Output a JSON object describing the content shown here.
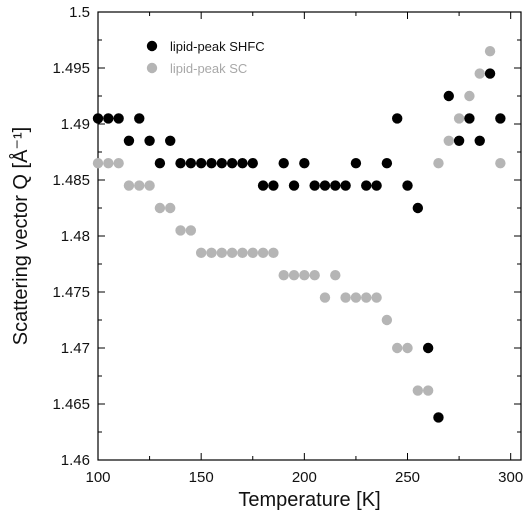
{
  "chart_data": {
    "type": "scatter",
    "title": "",
    "xlabel": "Temperature [K]",
    "ylabel": "Scattering vector Q [Å⁻¹]",
    "xlim": [
      100,
      305
    ],
    "ylim": [
      1.46,
      1.5
    ],
    "xticks": [
      "100",
      "150",
      "200",
      "250",
      "300"
    ],
    "yticks": [
      "1.46",
      "1.465",
      "1.47",
      "1.475",
      "1.48",
      "1.485",
      "1.49",
      "1.495",
      "1.5"
    ],
    "grid": false,
    "legend_position": "top-left",
    "series": [
      {
        "name": "lipid-peak SHFC",
        "color": "#000000",
        "points": [
          [
            100,
            1.4905
          ],
          [
            105,
            1.4905
          ],
          [
            110,
            1.4905
          ],
          [
            115,
            1.4885
          ],
          [
            120,
            1.4905
          ],
          [
            125,
            1.4885
          ],
          [
            130,
            1.4865
          ],
          [
            135,
            1.4885
          ],
          [
            140,
            1.4865
          ],
          [
            145,
            1.4865
          ],
          [
            150,
            1.4865
          ],
          [
            155,
            1.4865
          ],
          [
            160,
            1.4865
          ],
          [
            165,
            1.4865
          ],
          [
            170,
            1.4865
          ],
          [
            175,
            1.4865
          ],
          [
            180,
            1.4845
          ],
          [
            185,
            1.4845
          ],
          [
            190,
            1.4865
          ],
          [
            195,
            1.4845
          ],
          [
            200,
            1.4865
          ],
          [
            205,
            1.4845
          ],
          [
            210,
            1.4845
          ],
          [
            215,
            1.4845
          ],
          [
            220,
            1.4845
          ],
          [
            225,
            1.4865
          ],
          [
            230,
            1.4845
          ],
          [
            235,
            1.4845
          ],
          [
            240,
            1.4865
          ],
          [
            245,
            1.4905
          ],
          [
            250,
            1.4845
          ],
          [
            255,
            1.4825
          ],
          [
            260,
            1.47
          ],
          [
            265,
            1.4638
          ],
          [
            270,
            1.4925
          ],
          [
            275,
            1.4885
          ],
          [
            280,
            1.4905
          ],
          [
            285,
            1.4885
          ],
          [
            290,
            1.4945
          ],
          [
            295,
            1.4905
          ]
        ]
      },
      {
        "name": "lipid-peak SC",
        "color": "#b5b5b5",
        "points": [
          [
            100,
            1.4865
          ],
          [
            105,
            1.4865
          ],
          [
            110,
            1.4865
          ],
          [
            115,
            1.4845
          ],
          [
            120,
            1.4845
          ],
          [
            125,
            1.4845
          ],
          [
            130,
            1.4825
          ],
          [
            135,
            1.4825
          ],
          [
            140,
            1.4805
          ],
          [
            145,
            1.4805
          ],
          [
            150,
            1.4785
          ],
          [
            155,
            1.4785
          ],
          [
            160,
            1.4785
          ],
          [
            165,
            1.4785
          ],
          [
            170,
            1.4785
          ],
          [
            175,
            1.4785
          ],
          [
            180,
            1.4785
          ],
          [
            185,
            1.4785
          ],
          [
            190,
            1.4765
          ],
          [
            195,
            1.4765
          ],
          [
            200,
            1.4765
          ],
          [
            205,
            1.4765
          ],
          [
            210,
            1.4745
          ],
          [
            215,
            1.4765
          ],
          [
            220,
            1.4745
          ],
          [
            225,
            1.4745
          ],
          [
            230,
            1.4745
          ],
          [
            235,
            1.4745
          ],
          [
            240,
            1.4725
          ],
          [
            245,
            1.47
          ],
          [
            250,
            1.47
          ],
          [
            255,
            1.4662
          ],
          [
            260,
            1.4662
          ],
          [
            265,
            1.4865
          ],
          [
            270,
            1.4885
          ],
          [
            275,
            1.4905
          ],
          [
            280,
            1.4925
          ],
          [
            285,
            1.4945
          ],
          [
            290,
            1.4965
          ],
          [
            295,
            1.4865
          ]
        ]
      }
    ]
  }
}
